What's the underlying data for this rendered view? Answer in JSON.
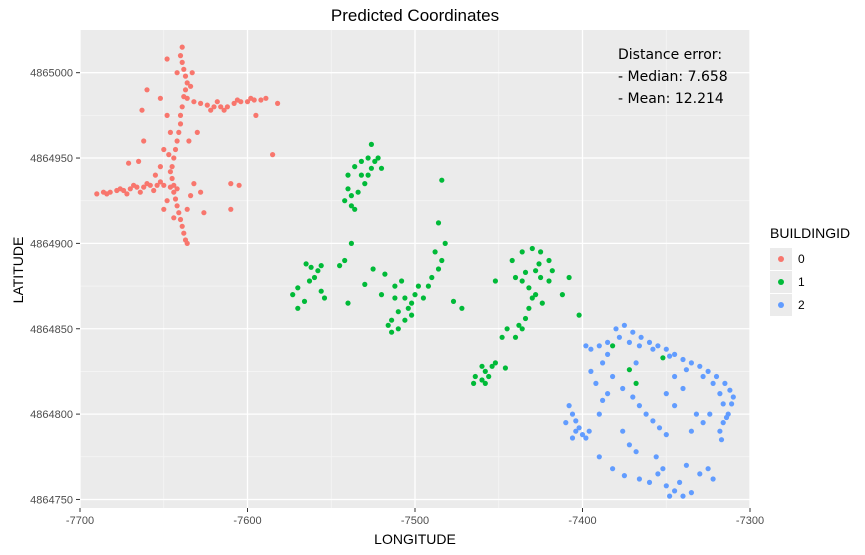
{
  "chart_data": {
    "type": "scatter",
    "title": "Predicted Coordinates",
    "xlabel": "LONGITUDE",
    "ylabel": "LATITUDE",
    "xlim": [
      -7700,
      -7300
    ],
    "ylim": [
      4864745,
      4865025
    ],
    "x_ticks": [
      -7700,
      -7600,
      -7500,
      -7400,
      -7300
    ],
    "y_ticks": [
      4864750,
      4864800,
      4864850,
      4864900,
      4864950,
      4865000
    ],
    "grid": true,
    "legend": {
      "title": "BUILDINGID",
      "placement": "right",
      "entries": [
        "0",
        "1",
        "2"
      ]
    },
    "annotation": [
      "Distance error:",
      "- Median: 7.658",
      "- Mean: 12.214"
    ],
    "series": [
      {
        "name": "0",
        "color": "#F8766D",
        "points": [
          [
            -7690,
            4864929
          ],
          [
            -7686,
            4864930
          ],
          [
            -7682,
            4864930
          ],
          [
            -7678,
            4864931
          ],
          [
            -7674,
            4864931
          ],
          [
            -7670,
            4864932
          ],
          [
            -7666,
            4864933
          ],
          [
            -7662,
            4864933
          ],
          [
            -7658,
            4864934
          ],
          [
            -7654,
            4864934
          ],
          [
            -7650,
            4864934
          ],
          [
            -7646,
            4864933
          ],
          [
            -7642,
            4864932
          ],
          [
            -7684,
            4864929
          ],
          [
            -7676,
            4864932
          ],
          [
            -7668,
            4864934
          ],
          [
            -7660,
            4864935
          ],
          [
            -7652,
            4864936
          ],
          [
            -7672,
            4864929
          ],
          [
            -7664,
            4864930
          ],
          [
            -7656,
            4864931
          ],
          [
            -7636,
            4864985
          ],
          [
            -7632,
            4864983
          ],
          [
            -7628,
            4864982
          ],
          [
            -7624,
            4864981
          ],
          [
            -7620,
            4864980
          ],
          [
            -7616,
            4864980
          ],
          [
            -7612,
            4864980
          ],
          [
            -7608,
            4864982
          ],
          [
            -7604,
            4864983
          ],
          [
            -7600,
            4864983
          ],
          [
            -7596,
            4864984
          ],
          [
            -7592,
            4864984
          ],
          [
            -7589,
            4864985
          ],
          [
            -7622,
            4864978
          ],
          [
            -7614,
            4864978
          ],
          [
            -7606,
            4864984
          ],
          [
            -7598,
            4864985
          ],
          [
            -7618,
            4864983
          ],
          [
            -7639,
            4865015
          ],
          [
            -7640,
            4865010
          ],
          [
            -7639,
            4865006
          ],
          [
            -7638,
            4865002
          ],
          [
            -7637,
            4864998
          ],
          [
            -7636,
            4864994
          ],
          [
            -7637,
            4864990
          ],
          [
            -7638,
            4864986
          ],
          [
            -7639,
            4864980
          ],
          [
            -7640,
            4864975
          ],
          [
            -7640,
            4864970
          ],
          [
            -7641,
            4864965
          ],
          [
            -7642,
            4864960
          ],
          [
            -7643,
            4864955
          ],
          [
            -7644,
            4864950
          ],
          [
            -7645,
            4864945
          ],
          [
            -7646,
            4864942
          ],
          [
            -7645,
            4864938
          ],
          [
            -7644,
            4864934
          ],
          [
            -7644,
            4864930
          ],
          [
            -7643,
            4864926
          ],
          [
            -7642,
            4864922
          ],
          [
            -7641,
            4864918
          ],
          [
            -7640,
            4864914
          ],
          [
            -7639,
            4864910
          ],
          [
            -7638,
            4864906
          ],
          [
            -7637,
            4864902
          ],
          [
            -7636,
            4864900
          ],
          [
            -7633,
            4865000
          ],
          [
            -7634,
            4864992
          ],
          [
            -7642,
            4865000
          ],
          [
            -7648,
            4864975
          ],
          [
            -7650,
            4864955
          ],
          [
            -7652,
            4864945
          ],
          [
            -7655,
            4864940
          ],
          [
            -7648,
            4864925
          ],
          [
            -7650,
            4864920
          ],
          [
            -7644,
            4864915
          ],
          [
            -7636,
            4864920
          ],
          [
            -7634,
            4864928
          ],
          [
            -7632,
            4864935
          ],
          [
            -7630,
            4864965
          ],
          [
            -7635,
            4864960
          ],
          [
            -7646,
            4864965
          ],
          [
            -7648,
            4865008
          ],
          [
            -7660,
            4864990
          ],
          [
            -7652,
            4864985
          ],
          [
            -7663,
            4864978
          ],
          [
            -7671,
            4864947
          ],
          [
            -7665,
            4864948
          ],
          [
            -7662,
            4864960
          ],
          [
            -7647,
            4864952
          ],
          [
            -7626,
            4864918
          ],
          [
            -7628,
            4864930
          ],
          [
            -7610,
            4864935
          ],
          [
            -7605,
            4864934
          ],
          [
            -7610,
            4864920
          ],
          [
            -7582,
            4864982
          ],
          [
            -7595,
            4864975
          ],
          [
            -7585,
            4864952
          ]
        ]
      },
      {
        "name": "1",
        "color": "#00BA38",
        "points": [
          [
            -7540,
            4864940
          ],
          [
            -7536,
            4864945
          ],
          [
            -7532,
            4864948
          ],
          [
            -7528,
            4864950
          ],
          [
            -7524,
            4864948
          ],
          [
            -7520,
            4864944
          ],
          [
            -7530,
            4864935
          ],
          [
            -7534,
            4864930
          ],
          [
            -7538,
            4864928
          ],
          [
            -7542,
            4864925
          ],
          [
            -7536,
            4864920
          ],
          [
            -7528,
            4864940
          ],
          [
            -7526,
            4864958
          ],
          [
            -7522,
            4864950
          ],
          [
            -7540,
            4864932
          ],
          [
            -7538,
            4864922
          ],
          [
            -7532,
            4864940
          ],
          [
            -7526,
            4864944
          ],
          [
            -7565,
            4864888
          ],
          [
            -7562,
            4864886
          ],
          [
            -7558,
            4864884
          ],
          [
            -7560,
            4864880
          ],
          [
            -7556,
            4864887
          ],
          [
            -7563,
            4864878
          ],
          [
            -7570,
            4864874
          ],
          [
            -7573,
            4864870
          ],
          [
            -7566,
            4864866
          ],
          [
            -7570,
            4864862
          ],
          [
            -7545,
            4864887
          ],
          [
            -7542,
            4864890
          ],
          [
            -7538,
            4864900
          ],
          [
            -7518,
            4864882
          ],
          [
            -7512,
            4864875
          ],
          [
            -7506,
            4864868
          ],
          [
            -7502,
            4864865
          ],
          [
            -7510,
            4864860
          ],
          [
            -7514,
            4864855
          ],
          [
            -7516,
            4864852
          ],
          [
            -7510,
            4864850
          ],
          [
            -7506,
            4864855
          ],
          [
            -7504,
            4864862
          ],
          [
            -7500,
            4864870
          ],
          [
            -7498,
            4864875
          ],
          [
            -7520,
            4864870
          ],
          [
            -7512,
            4864868
          ],
          [
            -7508,
            4864878
          ],
          [
            -7502,
            4864858
          ],
          [
            -7514,
            4864848
          ],
          [
            -7490,
            4864880
          ],
          [
            -7486,
            4864885
          ],
          [
            -7484,
            4864890
          ],
          [
            -7488,
            4864895
          ],
          [
            -7482,
            4864900
          ],
          [
            -7492,
            4864875
          ],
          [
            -7495,
            4864868
          ],
          [
            -7477,
            4864866
          ],
          [
            -7472,
            4864862
          ],
          [
            -7486,
            4864912
          ],
          [
            -7484,
            4864937
          ],
          [
            -7436,
            4864895
          ],
          [
            -7430,
            4864897
          ],
          [
            -7425,
            4864895
          ],
          [
            -7420,
            4864890
          ],
          [
            -7418,
            4864884
          ],
          [
            -7420,
            4864878
          ],
          [
            -7425,
            4864880
          ],
          [
            -7428,
            4864884
          ],
          [
            -7434,
            4864883
          ],
          [
            -7436,
            4864878
          ],
          [
            -7432,
            4864874
          ],
          [
            -7430,
            4864868
          ],
          [
            -7432,
            4864862
          ],
          [
            -7434,
            4864856
          ],
          [
            -7436,
            4864850
          ],
          [
            -7440,
            4864845
          ],
          [
            -7438,
            4864852
          ],
          [
            -7428,
            4864870
          ],
          [
            -7426,
            4864888
          ],
          [
            -7440,
            4864880
          ],
          [
            -7442,
            4864890
          ],
          [
            -7424,
            4864865
          ],
          [
            -7460,
            4864828
          ],
          [
            -7458,
            4864825
          ],
          [
            -7456,
            4864822
          ],
          [
            -7454,
            4864828
          ],
          [
            -7452,
            4864830
          ],
          [
            -7464,
            4864822
          ],
          [
            -7465,
            4864818
          ],
          [
            -7460,
            4864820
          ],
          [
            -7458,
            4864818
          ],
          [
            -7446,
            4864827
          ],
          [
            -7452,
            4864878
          ],
          [
            -7445,
            4864850
          ],
          [
            -7448,
            4864845
          ],
          [
            -7525,
            4864885
          ],
          [
            -7530,
            4864876
          ],
          [
            -7540,
            4864865
          ],
          [
            -7554,
            4864868
          ],
          [
            -7556,
            4864872
          ],
          [
            -7408,
            4864880
          ],
          [
            -7412,
            4864870
          ],
          [
            -7402,
            4864858
          ],
          [
            -7382,
            4864840
          ],
          [
            -7352,
            4864833
          ],
          [
            -7372,
            4864826
          ],
          [
            -7368,
            4864818
          ]
        ]
      },
      {
        "name": "2",
        "color": "#619CFF",
        "points": [
          [
            -7380,
            4864850
          ],
          [
            -7375,
            4864852
          ],
          [
            -7370,
            4864848
          ],
          [
            -7365,
            4864845
          ],
          [
            -7360,
            4864842
          ],
          [
            -7355,
            4864840
          ],
          [
            -7350,
            4864838
          ],
          [
            -7345,
            4864835
          ],
          [
            -7340,
            4864832
          ],
          [
            -7335,
            4864830
          ],
          [
            -7330,
            4864828
          ],
          [
            -7325,
            4864825
          ],
          [
            -7320,
            4864822
          ],
          [
            -7315,
            4864818
          ],
          [
            -7312,
            4864814
          ],
          [
            -7310,
            4864810
          ],
          [
            -7311,
            4864806
          ],
          [
            -7313,
            4864800
          ],
          [
            -7316,
            4864795
          ],
          [
            -7318,
            4864790
          ],
          [
            -7317,
            4864785
          ],
          [
            -7378,
            4864845
          ],
          [
            -7372,
            4864842
          ],
          [
            -7366,
            4864840
          ],
          [
            -7358,
            4864838
          ],
          [
            -7348,
            4864834
          ],
          [
            -7338,
            4864826
          ],
          [
            -7328,
            4864822
          ],
          [
            -7322,
            4864818
          ],
          [
            -7318,
            4864812
          ],
          [
            -7316,
            4864806
          ],
          [
            -7314,
            4864798
          ],
          [
            -7385,
            4864842
          ],
          [
            -7390,
            4864840
          ],
          [
            -7395,
            4864838
          ],
          [
            -7398,
            4864840
          ],
          [
            -7388,
            4864830
          ],
          [
            -7382,
            4864822
          ],
          [
            -7376,
            4864815
          ],
          [
            -7370,
            4864810
          ],
          [
            -7366,
            4864805
          ],
          [
            -7362,
            4864800
          ],
          [
            -7358,
            4864796
          ],
          [
            -7354,
            4864792
          ],
          [
            -7350,
            4864788
          ],
          [
            -7385,
            4864812
          ],
          [
            -7392,
            4864818
          ],
          [
            -7390,
            4864800
          ],
          [
            -7388,
            4864808
          ],
          [
            -7376,
            4864790
          ],
          [
            -7372,
            4864782
          ],
          [
            -7368,
            4864778
          ],
          [
            -7408,
            4864805
          ],
          [
            -7406,
            4864800
          ],
          [
            -7404,
            4864796
          ],
          [
            -7402,
            4864792
          ],
          [
            -7400,
            4864788
          ],
          [
            -7398,
            4864786
          ],
          [
            -7396,
            4864790
          ],
          [
            -7404,
            4864790
          ],
          [
            -7410,
            4864795
          ],
          [
            -7406,
            4864786
          ],
          [
            -7390,
            4864775
          ],
          [
            -7382,
            4864768
          ],
          [
            -7375,
            4864764
          ],
          [
            -7366,
            4864762
          ],
          [
            -7360,
            4864760
          ],
          [
            -7355,
            4864765
          ],
          [
            -7350,
            4864758
          ],
          [
            -7345,
            4864755
          ],
          [
            -7340,
            4864752
          ],
          [
            -7335,
            4864754
          ],
          [
            -7348,
            4864752
          ],
          [
            -7342,
            4864760
          ],
          [
            -7352,
            4864768
          ],
          [
            -7356,
            4864775
          ],
          [
            -7330,
            4864765
          ],
          [
            -7338,
            4864770
          ],
          [
            -7322,
            4864762
          ],
          [
            -7325,
            4864768
          ],
          [
            -7332,
            4864800
          ],
          [
            -7335,
            4864790
          ],
          [
            -7328,
            4864795
          ],
          [
            -7340,
            4864815
          ],
          [
            -7345,
            4864805
          ],
          [
            -7350,
            4864812
          ],
          [
            -7368,
            4864830
          ],
          [
            -7385,
            4864835
          ],
          [
            -7395,
            4864825
          ],
          [
            -7345,
            4864822
          ],
          [
            -7324,
            4864800
          ]
        ]
      }
    ]
  }
}
